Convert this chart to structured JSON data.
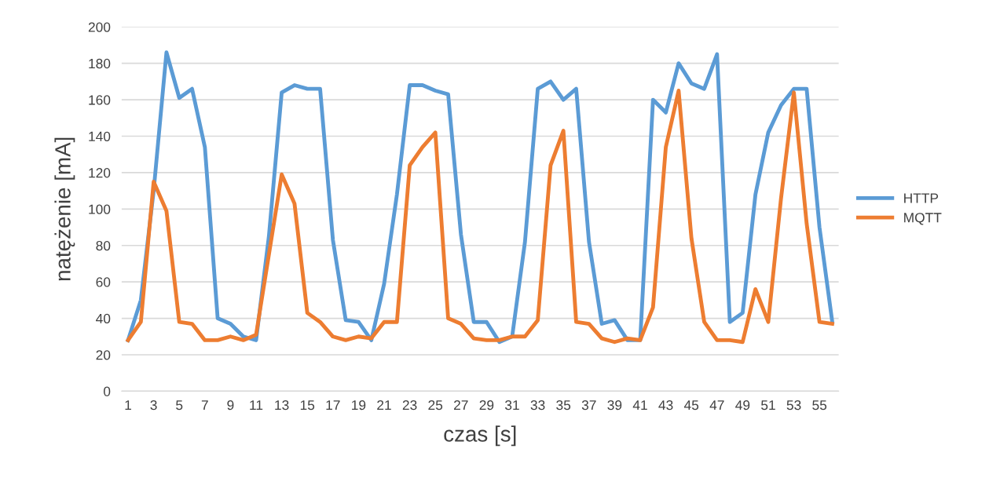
{
  "chart_data": {
    "type": "line",
    "xlabel": "czas [s]",
    "ylabel": "natężenie [mA]",
    "categories": [
      "1",
      null,
      "3",
      null,
      "5",
      null,
      "7",
      null,
      "9",
      null,
      "11",
      null,
      "13",
      null,
      "15",
      null,
      "17",
      null,
      "19",
      null,
      "21",
      null,
      "23",
      null,
      "25",
      null,
      "27",
      null,
      "29",
      null,
      "31",
      null,
      "33",
      null,
      "35",
      null,
      "37",
      null,
      "39",
      null,
      "41",
      null,
      "43",
      null,
      "45",
      null,
      "47",
      null,
      "49",
      null,
      "51",
      null,
      "53",
      null,
      "55",
      null
    ],
    "series": [
      {
        "name": "HTTP",
        "color": "#5b9bd5",
        "values": [
          28,
          50,
          110,
          186,
          161,
          166,
          134,
          40,
          37,
          30,
          28,
          85,
          164,
          168,
          166,
          166,
          83,
          39,
          38,
          28,
          59,
          108,
          168,
          168,
          165,
          163,
          86,
          38,
          38,
          27,
          30,
          82,
          166,
          170,
          160,
          166,
          82,
          37,
          39,
          28,
          28,
          160,
          153,
          180,
          169,
          166,
          185,
          38,
          43,
          108,
          142,
          157,
          166,
          166,
          90,
          38
        ]
      },
      {
        "name": "MQTT",
        "color": "#ed7d31",
        "values": [
          28,
          38,
          115,
          99,
          38,
          37,
          28,
          28,
          30,
          28,
          31,
          75,
          119,
          103,
          43,
          38,
          30,
          28,
          30,
          29,
          38,
          38,
          124,
          134,
          142,
          40,
          37,
          29,
          28,
          28,
          30,
          30,
          39,
          124,
          143,
          38,
          37,
          29,
          27,
          29,
          28,
          46,
          134,
          165,
          84,
          38,
          28,
          28,
          27,
          56,
          38,
          106,
          164,
          92,
          38,
          37
        ]
      }
    ],
    "ylim": [
      0,
      200
    ],
    "yticks": [
      0,
      20,
      40,
      60,
      80,
      100,
      120,
      140,
      160,
      180,
      200
    ],
    "grid": "y",
    "legend": "right",
    "marker": "none",
    "line_style": "solid"
  }
}
